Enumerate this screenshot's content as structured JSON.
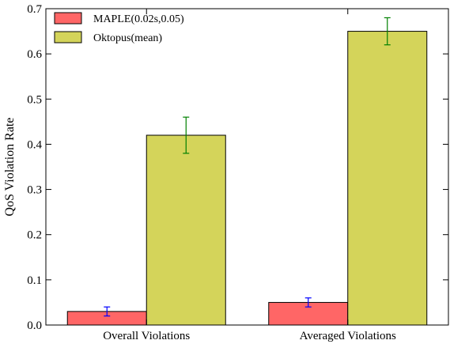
{
  "chart_data": {
    "type": "bar",
    "title": "",
    "xlabel": "",
    "ylabel": "QoS Violation Rate",
    "ylim": [
      0,
      0.7
    ],
    "yticks": [
      "0.0",
      "0.1",
      "0.2",
      "0.3",
      "0.4",
      "0.5",
      "0.6",
      "0.7"
    ],
    "categories": [
      "Overall Violations",
      "Averaged Violations"
    ],
    "series": [
      {
        "name": "MAPLE(0.02s,0.05)",
        "values": [
          0.03,
          0.05
        ],
        "err_low": [
          0.02,
          0.04
        ],
        "err_high": [
          0.04,
          0.06
        ],
        "color": "#ff6666",
        "errcolor": "#0000ff"
      },
      {
        "name": "Oktopus(mean)",
        "values": [
          0.42,
          0.65
        ],
        "err_low": [
          0.38,
          0.62
        ],
        "err_high": [
          0.46,
          0.68
        ],
        "color": "#d4d45a",
        "errcolor": "#008000"
      }
    ],
    "legend": "top-left",
    "grid": false
  }
}
